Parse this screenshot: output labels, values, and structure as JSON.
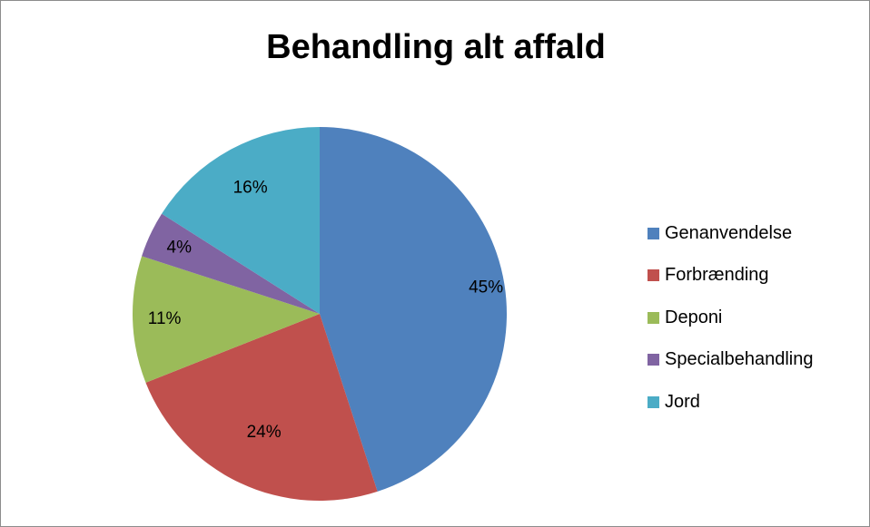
{
  "chart_data": {
    "type": "pie",
    "title": "Behandling alt affald",
    "categories": [
      "Genanvendelse",
      "Forbrænding",
      "Deponi",
      "Specialbehandling",
      "Jord"
    ],
    "values": [
      45,
      24,
      11,
      4,
      16
    ],
    "data_labels": [
      "45%",
      "24%",
      "11%",
      "4%",
      "16%"
    ],
    "colors": [
      "#4F81BD",
      "#C0504D",
      "#9BBB59",
      "#8064A2",
      "#4BACC6"
    ],
    "start_angle_deg": 0,
    "direction": "clockwise",
    "legend_position": "right"
  }
}
